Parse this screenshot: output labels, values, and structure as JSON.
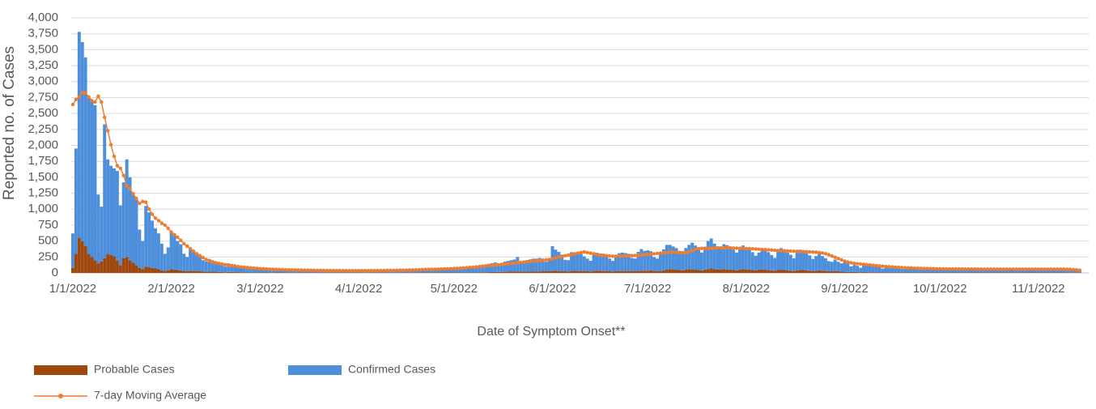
{
  "chart_data": {
    "type": "bar",
    "y_label": "Reported no. of Cases",
    "x_label": "Date of Symptom Onset**",
    "stacked": true,
    "grid": true,
    "legend": "bottom",
    "ylim": [
      0,
      4000
    ],
    "yticks": [
      0,
      250,
      500,
      750,
      {
        "value": 1000,
        "label": "1,000"
      },
      {
        "value": 1250,
        "label": "1,250"
      },
      {
        "value": 1500,
        "label": "1,500"
      },
      {
        "value": 1750,
        "label": "1,750"
      },
      {
        "value": 2000,
        "label": "2,000"
      },
      {
        "value": 2250,
        "label": "2,250"
      },
      {
        "value": 2500,
        "label": "2,500"
      },
      {
        "value": 2750,
        "label": "2,750"
      },
      {
        "value": 3000,
        "label": "3,000"
      },
      {
        "value": 3250,
        "label": "3,250"
      },
      {
        "value": 3500,
        "label": "3,500"
      },
      {
        "value": 3750,
        "label": "3,750"
      },
      {
        "value": 4000,
        "label": "4,000"
      }
    ],
    "categories": [
      "1/1/2022",
      null,
      null,
      null,
      null,
      null,
      null,
      null,
      null,
      null,
      null,
      null,
      null,
      null,
      null,
      null,
      null,
      null,
      null,
      null,
      null,
      null,
      null,
      null,
      null,
      null,
      null,
      null,
      null,
      null,
      null,
      "2/1/2022",
      null,
      null,
      null,
      null,
      null,
      null,
      null,
      null,
      null,
      null,
      null,
      null,
      null,
      null,
      null,
      null,
      null,
      null,
      null,
      null,
      null,
      null,
      null,
      null,
      null,
      null,
      null,
      "3/1/2022",
      null,
      null,
      null,
      null,
      null,
      null,
      null,
      null,
      null,
      null,
      null,
      null,
      null,
      null,
      null,
      null,
      null,
      null,
      null,
      null,
      null,
      null,
      null,
      null,
      null,
      null,
      null,
      null,
      null,
      null,
      "4/1/2022",
      null,
      null,
      null,
      null,
      null,
      null,
      null,
      null,
      null,
      null,
      null,
      null,
      null,
      null,
      null,
      null,
      null,
      null,
      null,
      null,
      null,
      null,
      null,
      null,
      null,
      null,
      null,
      null,
      null,
      "5/1/2022",
      null,
      null,
      null,
      null,
      null,
      null,
      null,
      null,
      null,
      null,
      null,
      null,
      null,
      null,
      null,
      null,
      null,
      null,
      null,
      null,
      null,
      null,
      null,
      null,
      null,
      null,
      null,
      null,
      null,
      null,
      "6/1/2022",
      null,
      null,
      null,
      null,
      null,
      null,
      null,
      null,
      null,
      null,
      null,
      null,
      null,
      null,
      null,
      null,
      null,
      null,
      null,
      null,
      null,
      null,
      null,
      null,
      null,
      null,
      null,
      null,
      null,
      "7/1/2022",
      null,
      null,
      null,
      null,
      null,
      null,
      null,
      null,
      null,
      null,
      null,
      null,
      null,
      null,
      null,
      null,
      null,
      null,
      null,
      null,
      null,
      null,
      null,
      null,
      null,
      null,
      null,
      null,
      null,
      null,
      "8/1/2022",
      null,
      null,
      null,
      null,
      null,
      null,
      null,
      null,
      null,
      null,
      null,
      null,
      null,
      null,
      null,
      null,
      null,
      null,
      null,
      null,
      null,
      null,
      null,
      null,
      null,
      null,
      null,
      null,
      null,
      null,
      "9/1/2022",
      null,
      null,
      null,
      null,
      null,
      null,
      null,
      null,
      null,
      null,
      null,
      null,
      null,
      null,
      null,
      null,
      null,
      null,
      null,
      null,
      null,
      null,
      null,
      null,
      null,
      null,
      null,
      null,
      null,
      "10/1/2022",
      null,
      null,
      null,
      null,
      null,
      null,
      null,
      null,
      null,
      null,
      null,
      null,
      null,
      null,
      null,
      null,
      null,
      null,
      null,
      null,
      null,
      null,
      null,
      null,
      null,
      null,
      null,
      null,
      null,
      null,
      "11/1/2022",
      null,
      null,
      null,
      null,
      null,
      null,
      null,
      null,
      null,
      null,
      null,
      null,
      null
    ],
    "series": [
      {
        "name": "Probable Cases",
        "color": "#9e480e",
        "values": [
          80,
          300,
          550,
          500,
          420,
          300,
          250,
          200,
          150,
          180,
          230,
          300,
          280,
          260,
          200,
          120,
          230,
          250,
          200,
          160,
          120,
          80,
          60,
          100,
          90,
          80,
          70,
          60,
          40,
          30,
          40,
          60,
          50,
          45,
          40,
          30,
          25,
          35,
          30,
          30,
          25,
          20,
          18,
          22,
          20,
          18,
          15,
          12,
          10,
          15,
          14,
          12,
          11,
          10,
          9,
          8,
          7,
          8,
          8,
          7,
          6,
          6,
          5,
          4,
          6,
          6,
          6,
          5,
          5,
          5,
          4,
          4,
          5,
          5,
          5,
          5,
          5,
          4,
          4,
          4,
          4,
          4,
          4,
          4,
          3,
          3,
          4,
          4,
          4,
          4,
          4,
          4,
          3,
          3,
          4,
          4,
          4,
          4,
          4,
          3,
          3,
          4,
          4,
          4,
          5,
          5,
          4,
          4,
          5,
          5,
          5,
          5,
          5,
          5,
          5,
          6,
          6,
          6,
          6,
          6,
          6,
          6,
          7,
          7,
          7,
          8,
          8,
          9,
          9,
          10,
          11,
          12,
          13,
          14,
          15,
          16,
          17,
          18,
          19,
          20,
          20,
          20,
          21,
          22,
          22,
          23,
          24,
          24,
          25,
          25,
          26,
          30,
          35,
          30,
          28,
          25,
          20,
          25,
          35,
          30,
          30,
          30,
          25,
          20,
          30,
          35,
          35,
          30,
          30,
          25,
          20,
          25,
          30,
          30,
          30,
          30,
          25,
          25,
          30,
          35,
          35,
          35,
          40,
          30,
          25,
          30,
          40,
          50,
          60,
          55,
          50,
          45,
          40,
          50,
          60,
          55,
          50,
          45,
          40,
          50,
          60,
          70,
          60,
          55,
          50,
          60,
          55,
          50,
          45,
          40,
          50,
          60,
          55,
          50,
          45,
          40,
          50,
          55,
          50,
          45,
          40,
          35,
          45,
          50,
          45,
          40,
          35,
          30,
          40,
          45,
          45,
          40,
          35,
          30,
          35,
          40,
          35,
          30,
          25,
          25,
          30,
          25,
          20,
          18,
          15,
          12,
          15,
          12,
          10,
          12,
          12,
          10,
          10,
          10,
          9,
          8,
          9,
          9,
          8,
          8,
          8,
          7,
          7,
          7,
          7,
          7,
          7,
          6,
          6,
          6,
          6,
          6,
          6,
          6,
          6,
          5,
          6,
          6,
          6,
          6,
          6,
          5,
          5,
          6,
          6,
          6,
          6,
          6,
          5,
          5,
          6,
          6,
          6,
          6,
          6,
          6,
          5,
          5,
          6,
          6,
          6,
          6,
          6,
          6,
          6,
          6,
          6,
          6,
          5,
          5,
          6,
          6,
          6,
          5,
          5,
          4,
          4,
          3
        ]
      },
      {
        "name": "Confirmed Cases",
        "color": "#4d8fdb",
        "values": [
          540,
          1650,
          3230,
          3120,
          2960,
          2450,
          2450,
          2430,
          1080,
          860,
          2100,
          1480,
          1400,
          1380,
          1400,
          940,
          1190,
          1530,
          1300,
          1100,
          1060,
          600,
          440,
          950,
          860,
          740,
          630,
          560,
          420,
          270,
          360,
          590,
          530,
          455,
          410,
          270,
          225,
          345,
          320,
          290,
          225,
          180,
          162,
          198,
          180,
          162,
          135,
          108,
          90,
          135,
          126,
          108,
          99,
          90,
          81,
          72,
          63,
          72,
          67,
          60,
          58,
          55,
          50,
          35,
          40,
          55,
          54,
          52,
          50,
          48,
          35,
          32,
          48,
          47,
          46,
          45,
          44,
          30,
          28,
          42,
          41,
          40,
          40,
          39,
          28,
          26,
          38,
          38,
          37,
          37,
          36,
          38,
          28,
          27,
          38,
          40,
          41,
          42,
          42,
          30,
          30,
          44,
          46,
          48,
          50,
          50,
          38,
          38,
          52,
          54,
          56,
          58,
          58,
          46,
          46,
          60,
          62,
          64,
          66,
          66,
          60,
          64,
          70,
          80,
          85,
          70,
          72,
          100,
          105,
          110,
          120,
          130,
          140,
          150,
          100,
          100,
          160,
          170,
          180,
          190,
          230,
          150,
          140,
          180,
          190,
          200,
          200,
          210,
          160,
          150,
          200,
          390,
          330,
          300,
          260,
          180,
          180,
          300,
          280,
          270,
          270,
          230,
          200,
          170,
          290,
          280,
          270,
          270,
          240,
          200,
          170,
          240,
          280,
          290,
          280,
          270,
          210,
          200,
          300,
          340,
          310,
          320,
          300,
          220,
          200,
          260,
          330,
          390,
          380,
          360,
          340,
          300,
          260,
          340,
          380,
          420,
          380,
          340,
          280,
          360,
          440,
          470,
          400,
          360,
          340,
          390,
          380,
          360,
          320,
          280,
          330,
          370,
          340,
          320,
          280,
          230,
          270,
          320,
          320,
          280,
          240,
          200,
          290,
          340,
          320,
          280,
          250,
          200,
          280,
          320,
          300,
          270,
          240,
          190,
          230,
          260,
          230,
          200,
          160,
          150,
          180,
          150,
          130,
          150,
          130,
          90,
          110,
          100,
          70,
          120,
          120,
          110,
          100,
          90,
          80,
          60,
          90,
          85,
          80,
          80,
          75,
          55,
          55,
          70,
          70,
          68,
          66,
          50,
          48,
          64,
          62,
          60,
          60,
          58,
          56,
          44,
          60,
          60,
          60,
          58,
          56,
          44,
          44,
          58,
          60,
          60,
          58,
          58,
          44,
          44,
          56,
          58,
          60,
          58,
          58,
          56,
          44,
          44,
          56,
          58,
          58,
          58,
          58,
          56,
          56,
          58,
          56,
          54,
          42,
          42,
          54,
          56,
          52,
          44,
          40,
          34,
          30,
          26
        ]
      },
      {
        "name": "7-day Moving Average",
        "color": "#ed7d31",
        "type": "line",
        "values": [
          2640,
          2720,
          2760,
          2830,
          2820,
          2760,
          2700,
          2680,
          2770,
          2680,
          2440,
          2230,
          2010,
          1830,
          1680,
          1640,
          1530,
          1360,
          1320,
          1240,
          1170,
          1090,
          1120,
          1110,
          1000,
          920,
          860,
          820,
          780,
          750,
          700,
          640,
          600,
          560,
          510,
          460,
          420,
          380,
          340,
          300,
          270,
          240,
          210,
          190,
          170,
          160,
          150,
          140,
          130,
          120,
          115,
          110,
          100,
          95,
          90,
          85,
          80,
          75,
          70,
          68,
          65,
          62,
          60,
          58,
          56,
          54,
          52,
          50,
          49,
          48,
          47,
          46,
          45,
          44,
          43,
          42,
          41,
          40,
          40,
          39,
          38,
          38,
          37,
          37,
          37,
          36,
          36,
          36,
          36,
          36,
          36,
          36,
          36,
          36,
          37,
          37,
          38,
          38,
          39,
          40,
          40,
          41,
          42,
          43,
          44,
          45,
          46,
          47,
          48,
          50,
          52,
          54,
          56,
          57,
          58,
          60,
          62,
          64,
          66,
          68,
          70,
          72,
          75,
          78,
          82,
          86,
          90,
          95,
          100,
          105,
          110,
          115,
          120,
          125,
          130,
          135,
          140,
          145,
          150,
          155,
          160,
          165,
          170,
          175,
          180,
          185,
          190,
          195,
          200,
          205,
          210,
          220,
          235,
          250,
          260,
          270,
          280,
          290,
          300,
          310,
          320,
          330,
          320,
          310,
          300,
          290,
          280,
          275,
          270,
          265,
          262,
          262,
          264,
          266,
          268,
          270,
          272,
          274,
          276,
          280,
          285,
          290,
          295,
          300,
          305,
          310,
          315,
          320,
          325,
          330,
          325,
          320,
          318,
          316,
          330,
          350,
          370,
          380,
          385,
          385,
          385,
          388,
          390,
          392,
          394,
          395,
          394,
          392,
          390,
          388,
          386,
          384,
          382,
          380,
          378,
          375,
          372,
          368,
          365,
          362,
          358,
          355,
          352,
          350,
          348,
          345,
          342,
          340,
          338,
          336,
          334,
          332,
          330,
          328,
          325,
          320,
          312,
          300,
          285,
          265,
          245,
          225,
          205,
          185,
          170,
          160,
          150,
          145,
          140,
          135,
          130,
          125,
          120,
          115,
          110,
          105,
          100,
          97,
          94,
          91,
          88,
          85,
          82,
          80,
          78,
          76,
          74,
          72,
          70,
          69,
          68,
          67,
          66,
          65,
          64,
          64,
          63,
          63,
          62,
          62,
          62,
          61,
          61,
          61,
          61,
          61,
          60,
          60,
          60,
          60,
          60,
          60,
          60,
          60,
          60,
          60,
          60,
          60,
          60,
          60,
          60,
          60,
          60,
          60,
          60,
          60,
          60,
          60,
          60,
          60,
          60,
          60,
          59,
          58,
          56,
          52,
          48,
          42
        ]
      }
    ]
  }
}
